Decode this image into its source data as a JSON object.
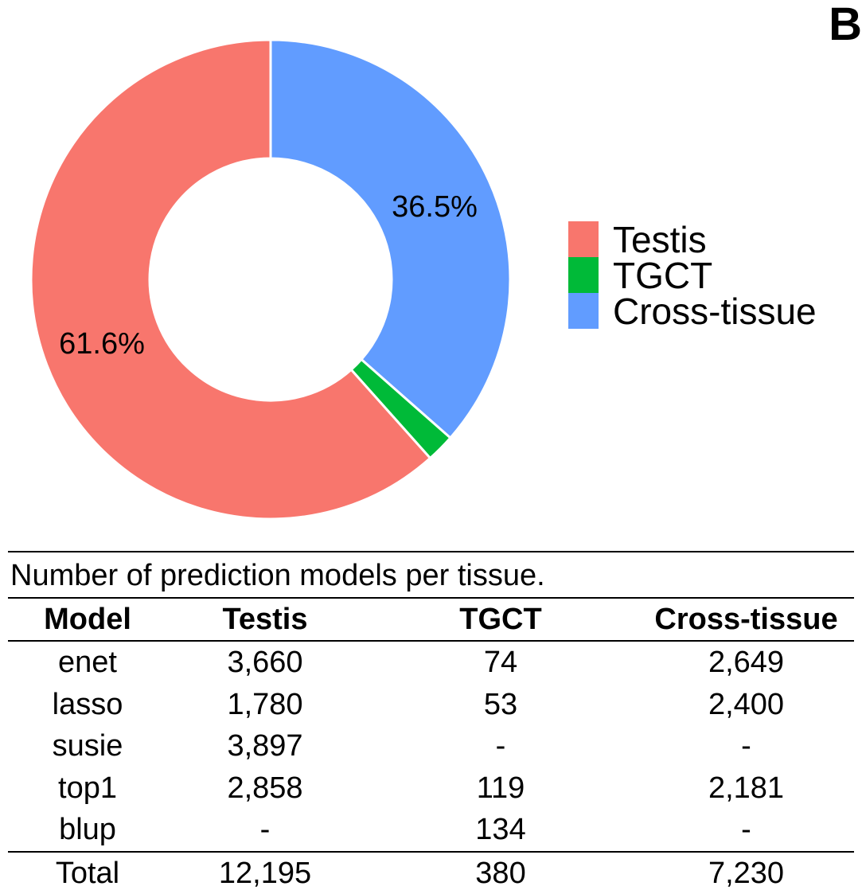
{
  "panel_label": "B",
  "chart_data": {
    "type": "pie",
    "subtype": "donut",
    "start_angle_deg": 0,
    "direction": "clockwise",
    "slices": [
      {
        "name": "Cross-tissue",
        "value": 36.5,
        "label": "36.5%",
        "color": "#619cff"
      },
      {
        "name": "TGCT",
        "value": 1.9,
        "label": "",
        "color": "#00ba38"
      },
      {
        "name": "Testis",
        "value": 61.6,
        "label": "61.6%",
        "color": "#f8766d"
      }
    ],
    "legend": {
      "position": "right",
      "items": [
        {
          "name": "Testis",
          "color": "#f8766d"
        },
        {
          "name": "TGCT",
          "color": "#00ba38"
        },
        {
          "name": "Cross-tissue",
          "color": "#619cff"
        }
      ]
    }
  },
  "table": {
    "caption": "Number of prediction models per tissue.",
    "headers": [
      "Model",
      "Testis",
      "TGCT",
      "Cross-tissue"
    ],
    "rows": [
      [
        "enet",
        "3,660",
        "74",
        "2,649"
      ],
      [
        "lasso",
        "1,780",
        "53",
        "2,400"
      ],
      [
        "susie",
        "3,897",
        "-",
        "-"
      ],
      [
        "top1",
        "2,858",
        "119",
        "2,181"
      ],
      [
        "blup",
        "-",
        "134",
        "-"
      ]
    ],
    "total": [
      "Total",
      "12,195",
      "380",
      "7,230"
    ]
  }
}
